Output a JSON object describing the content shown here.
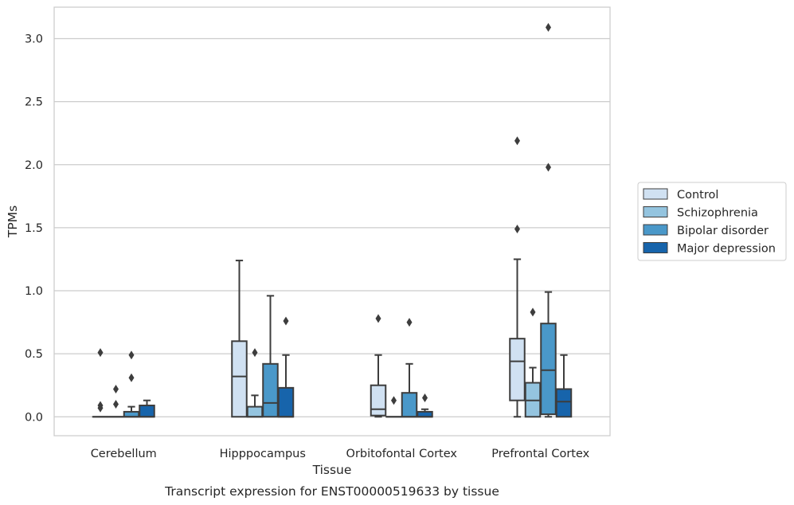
{
  "chart_data": {
    "type": "box",
    "title": "Transcript expression for ENST00000519633 by tissue",
    "xlabel": "Tissue",
    "ylabel": "TPMs",
    "ylim": [
      -0.15,
      3.25
    ],
    "yticks": [
      "0.0",
      "0.5",
      "1.0",
      "1.5",
      "2.0",
      "2.5",
      "3.0"
    ],
    "grid": true,
    "legend_position": "right",
    "categories": [
      "Cerebellum",
      "Hipppocampus",
      "Orbitofontal Cortex",
      "Prefrontal Cortex"
    ],
    "series": [
      {
        "name": "Control",
        "color": "#d0e1f2",
        "boxes": [
          {
            "q1": 0.0,
            "median": 0.0,
            "q3": 0.0,
            "whisker_low": 0.0,
            "whisker_high": 0.0,
            "outliers": [
              0.51,
              0.09,
              0.07
            ]
          },
          {
            "q1": 0.0,
            "median": 0.32,
            "q3": 0.6,
            "whisker_low": 0.0,
            "whisker_high": 1.24,
            "outliers": []
          },
          {
            "q1": 0.01,
            "median": 0.06,
            "q3": 0.25,
            "whisker_low": 0.0,
            "whisker_high": 0.49,
            "outliers": [
              0.78
            ]
          },
          {
            "q1": 0.13,
            "median": 0.44,
            "q3": 0.62,
            "whisker_low": 0.0,
            "whisker_high": 1.25,
            "outliers": [
              2.19,
              1.49
            ]
          }
        ]
      },
      {
        "name": "Schizophrenia",
        "color": "#94c4df",
        "boxes": [
          {
            "q1": 0.0,
            "median": 0.0,
            "q3": 0.0,
            "whisker_low": 0.0,
            "whisker_high": 0.0,
            "outliers": [
              0.22,
              0.1
            ]
          },
          {
            "q1": 0.0,
            "median": 0.0,
            "q3": 0.08,
            "whisker_low": 0.0,
            "whisker_high": 0.17,
            "outliers": [
              0.51
            ]
          },
          {
            "q1": 0.0,
            "median": 0.0,
            "q3": 0.0,
            "whisker_low": 0.0,
            "whisker_high": 0.0,
            "outliers": [
              0.13
            ]
          },
          {
            "q1": 0.0,
            "median": 0.13,
            "q3": 0.27,
            "whisker_low": 0.0,
            "whisker_high": 0.39,
            "outliers": [
              0.83
            ]
          }
        ]
      },
      {
        "name": "Bipolar disorder",
        "color": "#4a98c9",
        "boxes": [
          {
            "q1": 0.0,
            "median": 0.0,
            "q3": 0.04,
            "whisker_low": 0.0,
            "whisker_high": 0.08,
            "outliers": [
              0.49,
              0.31
            ]
          },
          {
            "q1": 0.0,
            "median": 0.11,
            "q3": 0.42,
            "whisker_low": 0.0,
            "whisker_high": 0.96,
            "outliers": []
          },
          {
            "q1": 0.0,
            "median": 0.0,
            "q3": 0.19,
            "whisker_low": 0.0,
            "whisker_high": 0.42,
            "outliers": [
              0.75
            ]
          },
          {
            "q1": 0.02,
            "median": 0.37,
            "q3": 0.74,
            "whisker_low": 0.0,
            "whisker_high": 0.99,
            "outliers": [
              3.09,
              1.98
            ]
          }
        ]
      },
      {
        "name": "Major depression",
        "color": "#1764ab",
        "boxes": [
          {
            "q1": 0.0,
            "median": 0.0,
            "q3": 0.09,
            "whisker_low": 0.0,
            "whisker_high": 0.13,
            "outliers": []
          },
          {
            "q1": 0.0,
            "median": 0.0,
            "q3": 0.23,
            "whisker_low": 0.0,
            "whisker_high": 0.49,
            "outliers": [
              0.76
            ]
          },
          {
            "q1": 0.0,
            "median": 0.0,
            "q3": 0.04,
            "whisker_low": 0.0,
            "whisker_high": 0.06,
            "outliers": [
              0.15
            ]
          },
          {
            "q1": 0.0,
            "median": 0.12,
            "q3": 0.22,
            "whisker_low": 0.0,
            "whisker_high": 0.49,
            "outliers": []
          }
        ]
      }
    ]
  }
}
